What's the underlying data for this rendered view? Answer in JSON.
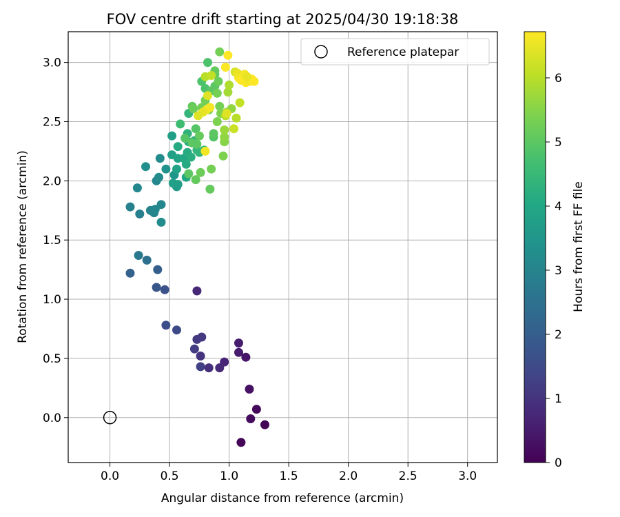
{
  "chart_data": {
    "type": "scatter",
    "title": "FOV centre drift starting at 2025/04/30 19:18:38",
    "xlabel": "Angular distance from reference (arcmin)",
    "ylabel": "Rotation from reference (arcmin)",
    "xlim": [
      -0.35,
      3.25
    ],
    "ylim": [
      -0.38,
      3.26
    ],
    "xticks": [
      0.0,
      0.5,
      1.0,
      1.5,
      2.0,
      2.5,
      3.0
    ],
    "xtick_labels": [
      "0.0",
      "0.5",
      "1.0",
      "1.5",
      "2.0",
      "2.5",
      "3.0"
    ],
    "yticks": [
      0.0,
      0.5,
      1.0,
      1.5,
      2.0,
      2.5,
      3.0
    ],
    "ytick_labels": [
      "0.0",
      "0.5",
      "1.0",
      "1.5",
      "2.0",
      "2.5",
      "3.0"
    ],
    "grid": true,
    "legend": {
      "position": "top-right",
      "entries": [
        "Reference platepar"
      ]
    },
    "reference_point": {
      "x": 0.0,
      "y": 0.0
    },
    "colorbar": {
      "label": "Hours from first FF file",
      "range": [
        0,
        6.72
      ],
      "ticks": [
        0,
        1,
        2,
        3,
        4,
        5,
        6
      ],
      "tick_labels": [
        "0",
        "1",
        "2",
        "3",
        "4",
        "5",
        "6"
      ],
      "colormap": "viridis"
    },
    "points": [
      {
        "x": 1.3,
        "y": -0.06,
        "c": 0.05
      },
      {
        "x": 1.1,
        "y": -0.21,
        "c": 0.1
      },
      {
        "x": 1.23,
        "y": 0.07,
        "c": 0.15
      },
      {
        "x": 1.18,
        "y": -0.01,
        "c": 0.2
      },
      {
        "x": 1.17,
        "y": 0.24,
        "c": 0.3
      },
      {
        "x": 1.14,
        "y": 0.51,
        "c": 0.4
      },
      {
        "x": 1.08,
        "y": 0.55,
        "c": 0.5
      },
      {
        "x": 1.08,
        "y": 0.63,
        "c": 0.55
      },
      {
        "x": 0.96,
        "y": 0.47,
        "c": 0.7
      },
      {
        "x": 0.92,
        "y": 0.42,
        "c": 0.8
      },
      {
        "x": 0.83,
        "y": 0.42,
        "c": 0.9
      },
      {
        "x": 0.76,
        "y": 0.52,
        "c": 1.0
      },
      {
        "x": 0.73,
        "y": 1.07,
        "c": 0.75
      },
      {
        "x": 0.77,
        "y": 0.68,
        "c": 1.1
      },
      {
        "x": 0.73,
        "y": 0.66,
        "c": 1.15
      },
      {
        "x": 0.71,
        "y": 0.58,
        "c": 1.2
      },
      {
        "x": 0.76,
        "y": 0.43,
        "c": 1.25
      },
      {
        "x": 0.56,
        "y": 0.74,
        "c": 1.5
      },
      {
        "x": 0.47,
        "y": 0.78,
        "c": 1.6
      },
      {
        "x": 0.46,
        "y": 1.08,
        "c": 1.7
      },
      {
        "x": 0.39,
        "y": 1.1,
        "c": 1.8
      },
      {
        "x": 0.4,
        "y": 1.25,
        "c": 2.0
      },
      {
        "x": 0.17,
        "y": 1.22,
        "c": 2.1
      },
      {
        "x": 0.31,
        "y": 1.33,
        "c": 2.5
      },
      {
        "x": 0.24,
        "y": 1.37,
        "c": 2.7
      },
      {
        "x": 0.17,
        "y": 1.78,
        "c": 2.9
      },
      {
        "x": 0.25,
        "y": 1.72,
        "c": 2.9
      },
      {
        "x": 0.34,
        "y": 1.75,
        "c": 3.0
      },
      {
        "x": 0.37,
        "y": 1.73,
        "c": 3.0
      },
      {
        "x": 0.38,
        "y": 1.76,
        "c": 3.1
      },
      {
        "x": 0.43,
        "y": 1.8,
        "c": 3.1
      },
      {
        "x": 0.43,
        "y": 1.65,
        "c": 3.2
      },
      {
        "x": 0.23,
        "y": 1.94,
        "c": 3.1
      },
      {
        "x": 0.39,
        "y": 2.0,
        "c": 3.1
      },
      {
        "x": 0.41,
        "y": 2.03,
        "c": 3.2
      },
      {
        "x": 0.42,
        "y": 2.19,
        "c": 3.2
      },
      {
        "x": 0.3,
        "y": 2.12,
        "c": 3.3
      },
      {
        "x": 0.47,
        "y": 2.1,
        "c": 3.4
      },
      {
        "x": 0.54,
        "y": 2.05,
        "c": 3.5
      },
      {
        "x": 0.56,
        "y": 1.95,
        "c": 3.6
      },
      {
        "x": 0.57,
        "y": 1.97,
        "c": 3.7
      },
      {
        "x": 0.53,
        "y": 1.98,
        "c": 3.8
      },
      {
        "x": 0.52,
        "y": 2.22,
        "c": 3.8
      },
      {
        "x": 0.52,
        "y": 2.38,
        "c": 3.8
      },
      {
        "x": 0.56,
        "y": 2.1,
        "c": 3.9
      },
      {
        "x": 0.57,
        "y": 2.19,
        "c": 3.9
      },
      {
        "x": 0.57,
        "y": 2.29,
        "c": 4.1
      },
      {
        "x": 0.62,
        "y": 2.19,
        "c": 4.0
      },
      {
        "x": 0.64,
        "y": 2.03,
        "c": 4.0
      },
      {
        "x": 0.64,
        "y": 2.14,
        "c": 4.1
      },
      {
        "x": 0.65,
        "y": 2.24,
        "c": 4.1
      },
      {
        "x": 0.66,
        "y": 2.33,
        "c": 4.2
      },
      {
        "x": 0.68,
        "y": 2.2,
        "c": 4.2
      },
      {
        "x": 0.65,
        "y": 2.4,
        "c": 4.3
      },
      {
        "x": 0.71,
        "y": 2.34,
        "c": 4.3
      },
      {
        "x": 0.73,
        "y": 2.26,
        "c": 4.4
      },
      {
        "x": 0.75,
        "y": 2.24,
        "c": 4.4
      },
      {
        "x": 0.79,
        "y": 2.26,
        "c": 4.5
      },
      {
        "x": 0.66,
        "y": 2.57,
        "c": 4.4
      },
      {
        "x": 0.59,
        "y": 2.48,
        "c": 4.6
      },
      {
        "x": 0.63,
        "y": 2.36,
        "c": 4.9
      },
      {
        "x": 0.72,
        "y": 2.44,
        "c": 4.9
      },
      {
        "x": 0.69,
        "y": 2.32,
        "c": 5.0
      },
      {
        "x": 0.73,
        "y": 2.31,
        "c": 5.0
      },
      {
        "x": 0.75,
        "y": 2.38,
        "c": 5.1
      },
      {
        "x": 0.66,
        "y": 2.06,
        "c": 5.0
      },
      {
        "x": 0.72,
        "y": 2.01,
        "c": 5.1
      },
      {
        "x": 0.76,
        "y": 2.07,
        "c": 5.2
      },
      {
        "x": 0.84,
        "y": 1.93,
        "c": 5.1
      },
      {
        "x": 0.85,
        "y": 2.1,
        "c": 5.3
      },
      {
        "x": 0.95,
        "y": 2.21,
        "c": 5.4
      },
      {
        "x": 0.87,
        "y": 2.37,
        "c": 4.9
      },
      {
        "x": 0.87,
        "y": 2.4,
        "c": 5.0
      },
      {
        "x": 0.69,
        "y": 2.63,
        "c": 5.1
      },
      {
        "x": 0.7,
        "y": 2.61,
        "c": 5.2
      },
      {
        "x": 0.77,
        "y": 2.62,
        "c": 5.3
      },
      {
        "x": 0.8,
        "y": 2.68,
        "c": 5.3
      },
      {
        "x": 0.83,
        "y": 2.6,
        "c": 5.4
      },
      {
        "x": 0.8,
        "y": 2.78,
        "c": 4.8
      },
      {
        "x": 0.77,
        "y": 2.84,
        "c": 4.8
      },
      {
        "x": 0.82,
        "y": 3.0,
        "c": 4.8
      },
      {
        "x": 0.85,
        "y": 2.76,
        "c": 5.0
      },
      {
        "x": 0.88,
        "y": 2.8,
        "c": 5.0
      },
      {
        "x": 0.88,
        "y": 2.9,
        "c": 5.1
      },
      {
        "x": 0.88,
        "y": 2.93,
        "c": 5.1
      },
      {
        "x": 0.91,
        "y": 2.84,
        "c": 5.2
      },
      {
        "x": 0.92,
        "y": 3.09,
        "c": 5.3
      },
      {
        "x": 0.9,
        "y": 2.74,
        "c": 5.3
      },
      {
        "x": 0.92,
        "y": 2.63,
        "c": 5.3
      },
      {
        "x": 0.93,
        "y": 2.57,
        "c": 5.4
      },
      {
        "x": 0.9,
        "y": 2.5,
        "c": 5.4
      },
      {
        "x": 0.96,
        "y": 2.33,
        "c": 5.5
      },
      {
        "x": 0.96,
        "y": 2.37,
        "c": 5.6
      },
      {
        "x": 0.96,
        "y": 2.43,
        "c": 5.7
      },
      {
        "x": 0.98,
        "y": 2.58,
        "c": 5.7
      },
      {
        "x": 1.02,
        "y": 2.61,
        "c": 5.6
      },
      {
        "x": 0.99,
        "y": 2.75,
        "c": 5.8
      },
      {
        "x": 1.0,
        "y": 2.81,
        "c": 5.9
      },
      {
        "x": 0.97,
        "y": 2.55,
        "c": 6.0
      },
      {
        "x": 1.04,
        "y": 2.44,
        "c": 6.2
      },
      {
        "x": 1.06,
        "y": 2.53,
        "c": 6.0
      },
      {
        "x": 1.09,
        "y": 2.66,
        "c": 6.1
      },
      {
        "x": 0.98,
        "y": 2.57,
        "c": 6.4
      },
      {
        "x": 0.82,
        "y": 2.72,
        "c": 6.4
      },
      {
        "x": 0.84,
        "y": 2.62,
        "c": 6.6
      },
      {
        "x": 0.81,
        "y": 2.6,
        "c": 6.6
      },
      {
        "x": 0.78,
        "y": 2.58,
        "c": 6.5
      },
      {
        "x": 0.74,
        "y": 2.55,
        "c": 6.4
      },
      {
        "x": 0.8,
        "y": 2.25,
        "c": 6.6
      },
      {
        "x": 0.8,
        "y": 2.88,
        "c": 6.0
      },
      {
        "x": 0.85,
        "y": 2.89,
        "c": 6.1
      },
      {
        "x": 0.97,
        "y": 2.96,
        "c": 6.7
      },
      {
        "x": 0.99,
        "y": 3.06,
        "c": 6.7
      },
      {
        "x": 1.05,
        "y": 2.92,
        "c": 6.3
      },
      {
        "x": 1.07,
        "y": 2.91,
        "c": 6.5
      },
      {
        "x": 1.08,
        "y": 2.87,
        "c": 6.6
      },
      {
        "x": 1.1,
        "y": 2.85,
        "c": 6.7
      },
      {
        "x": 1.13,
        "y": 2.9,
        "c": 6.6
      },
      {
        "x": 1.14,
        "y": 2.83,
        "c": 6.7
      },
      {
        "x": 1.17,
        "y": 2.84,
        "c": 6.6
      },
      {
        "x": 1.19,
        "y": 2.86,
        "c": 6.7
      },
      {
        "x": 1.21,
        "y": 2.84,
        "c": 6.7
      },
      {
        "x": 1.15,
        "y": 2.88,
        "c": 6.5
      }
    ]
  }
}
